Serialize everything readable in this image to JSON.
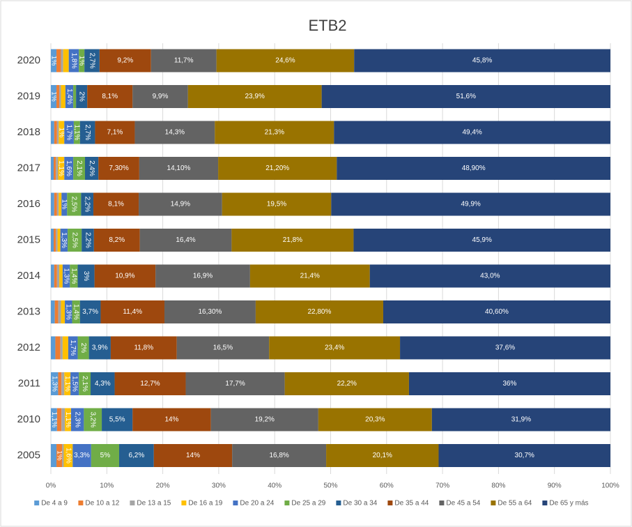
{
  "chart_data": {
    "type": "stacked-barh",
    "title": "ETB2",
    "categories": [
      "2020",
      "2019",
      "2018",
      "2017",
      "2016",
      "2015",
      "2014",
      "2013",
      "2012",
      "2011",
      "2010",
      "2005"
    ],
    "xlim": [
      0,
      100
    ],
    "xticks": [
      {
        "value": 0,
        "label": "0%"
      },
      {
        "value": 10,
        "label": "10%"
      },
      {
        "value": 20,
        "label": "20%"
      },
      {
        "value": 30,
        "label": "30%"
      },
      {
        "value": 40,
        "label": "40%"
      },
      {
        "value": 50,
        "label": "50%"
      },
      {
        "value": 60,
        "label": "60%"
      },
      {
        "value": 70,
        "label": "70%"
      },
      {
        "value": 80,
        "label": "80%"
      },
      {
        "value": 90,
        "label": "90%"
      },
      {
        "value": 100,
        "label": "100%"
      }
    ],
    "grid": true,
    "legend": "bottom",
    "series": [
      {
        "name": "De 4 a 9",
        "color": "#5b9bd5",
        "values": [
          1,
          1,
          0.6,
          0.5,
          0.6,
          0.5,
          0.6,
          0.7,
          0.8,
          1.3,
          1.1,
          1.0
        ],
        "value_labels": [
          "1%",
          "1%",
          null,
          null,
          null,
          null,
          null,
          null,
          null,
          "1,3%",
          "1,1%",
          null
        ]
      },
      {
        "name": "De 10 a 12",
        "color": "#ed7d31",
        "values": [
          0.8,
          0.5,
          0.5,
          0.4,
          0.5,
          0.4,
          0.5,
          0.6,
          0.9,
          0.6,
          0.8,
          1
        ],
        "value_labels": [
          null,
          null,
          null,
          null,
          null,
          null,
          null,
          null,
          null,
          null,
          null,
          "1%"
        ]
      },
      {
        "name": "De 13 a 15",
        "color": "#a5a5a5",
        "values": [
          0.4,
          0.3,
          0.3,
          0.4,
          0.3,
          0.3,
          0.4,
          0.5,
          0.4,
          0.5,
          0.6,
          0.3
        ],
        "value_labels": [
          null,
          null,
          null,
          null,
          null,
          null,
          null,
          null,
          null,
          null,
          null,
          null
        ]
      },
      {
        "name": "De 16 a 19",
        "color": "#ffc000",
        "values": [
          1.0,
          0.8,
          1,
          1.1,
          0.5,
          0.5,
          0.6,
          0.7,
          1.0,
          1.1,
          1.1,
          1.6
        ],
        "value_labels": [
          null,
          null,
          "1%",
          "1,1%",
          null,
          null,
          null,
          null,
          null,
          "1,1%",
          "1,1%",
          "1,6%"
        ]
      },
      {
        "name": "De 20 a 24",
        "color": "#4472c4",
        "values": [
          1.8,
          1.4,
          1.7,
          1.6,
          1,
          1.3,
          1.3,
          1.3,
          1.7,
          1.5,
          2.3,
          3.3
        ],
        "value_labels": [
          "1,8%",
          "1,4%",
          "1,7%",
          "1,6%",
          "1%",
          "1,3%",
          "1,3%",
          "1,3%",
          "1,7%",
          "1,5%",
          "2,3%",
          "3,3%"
        ]
      },
      {
        "name": "De 25 a 29",
        "color": "#70ad47",
        "values": [
          1,
          0.5,
          1.1,
          2.1,
          2.5,
          2.5,
          1.4,
          1.4,
          2,
          2.1,
          3.2,
          5
        ],
        "value_labels": [
          "1%",
          null,
          "1,1%",
          "2,1%",
          "2,5%",
          "2,5%",
          "1,4%",
          "1,4%",
          "2%",
          "2,1%",
          "3,2%",
          "5%"
        ]
      },
      {
        "name": "De 30 a 34",
        "color": "#255e91",
        "values": [
          2.7,
          2,
          2.7,
          2.4,
          2.2,
          2.2,
          3,
          3.7,
          3.9,
          4.3,
          5.5,
          6.2
        ],
        "value_labels": [
          "2,7%",
          "2%",
          "2,7%",
          "2,4%",
          "2,2%",
          "2,2%",
          "3%",
          "3,7%",
          "3,9%",
          "4,3%",
          "5,5%",
          "6,2%"
        ]
      },
      {
        "name": "De 35 a 44",
        "color": "#9e480e",
        "values": [
          9.2,
          8.1,
          7.1,
          7.3,
          8.1,
          8.2,
          10.9,
          11.4,
          11.8,
          12.7,
          14,
          14
        ],
        "value_labels": [
          "9,2%",
          "8,1%",
          "7,1%",
          "7,30%",
          "8,1%",
          "8,2%",
          "10,9%",
          "11,4%",
          "11,8%",
          "12,7%",
          "14%",
          "14%"
        ]
      },
      {
        "name": "De 45 a 54",
        "color": "#636363",
        "values": [
          11.7,
          9.9,
          14.3,
          14.1,
          14.9,
          16.4,
          16.9,
          16.3,
          16.5,
          17.7,
          19.2,
          16.8
        ],
        "value_labels": [
          "11,7%",
          "9,9%",
          "14,3%",
          "14,10%",
          "14,9%",
          "16,4%",
          "16,9%",
          "16,30%",
          "16,5%",
          "17,7%",
          "19,2%",
          "16,8%"
        ]
      },
      {
        "name": "De 55 a 64",
        "color": "#997300",
        "values": [
          24.6,
          23.9,
          21.3,
          21.2,
          19.5,
          21.8,
          21.4,
          22.8,
          23.4,
          22.2,
          20.3,
          20.1
        ],
        "value_labels": [
          "24,6%",
          "23,9%",
          "21,3%",
          "21,20%",
          "19,5%",
          "21,8%",
          "21,4%",
          "22,80%",
          "23,4%",
          "22,2%",
          "20,3%",
          "20,1%"
        ]
      },
      {
        "name": "De 65 y más",
        "color": "#264478",
        "values": [
          45.8,
          51.6,
          49.4,
          48.9,
          49.9,
          45.9,
          43.0,
          40.6,
          37.6,
          36,
          31.9,
          30.7
        ],
        "value_labels": [
          "45,8%",
          "51,6%",
          "49,4%",
          "48,90%",
          "49,9%",
          "45,9%",
          "43,0%",
          "40,60%",
          "37,6%",
          "36%",
          "31,9%",
          "30,7%"
        ]
      }
    ]
  }
}
